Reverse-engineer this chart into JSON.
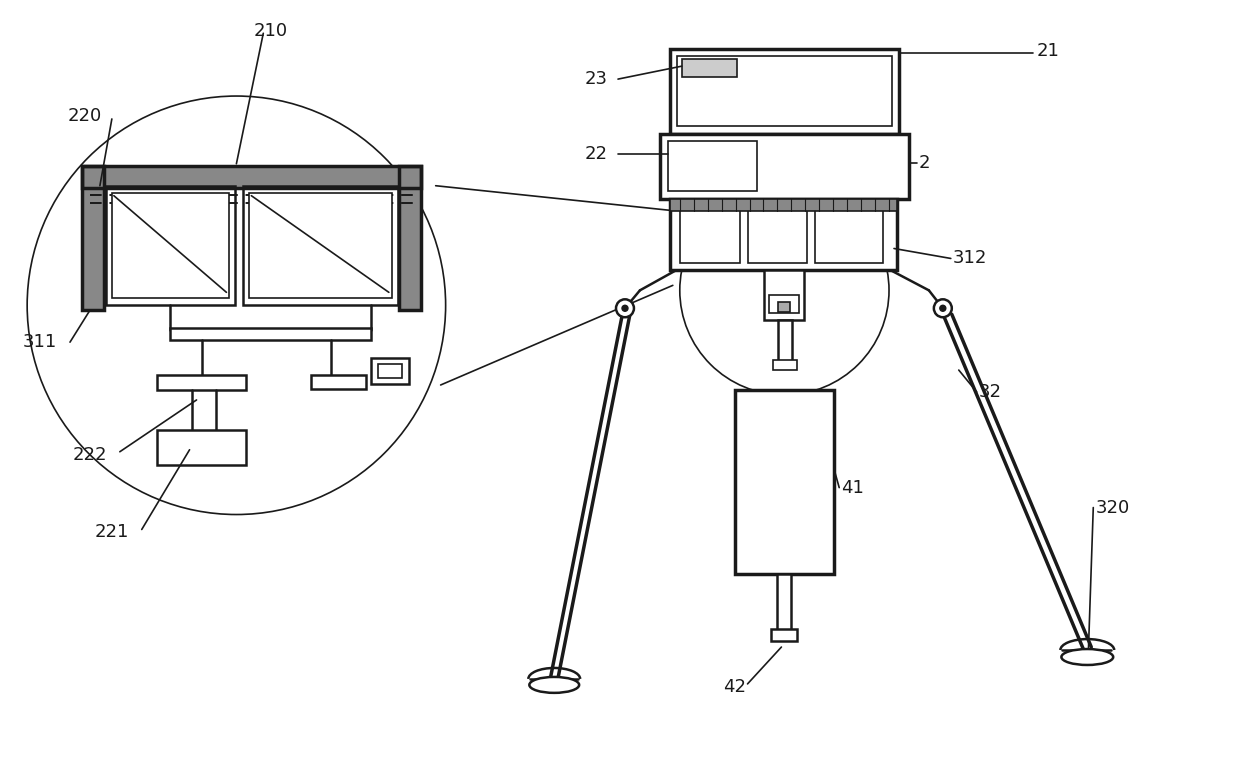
{
  "bg_color": "#ffffff",
  "line_color": "#1a1a1a",
  "label_color": "#1a1a1a",
  "label_fontsize": 13,
  "fig_width": 12.4,
  "fig_height": 7.66
}
